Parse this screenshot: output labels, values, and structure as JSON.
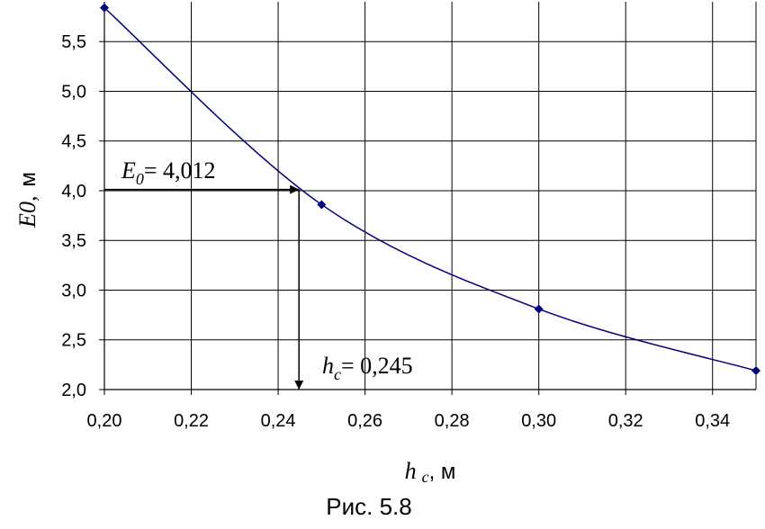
{
  "chart_data": {
    "type": "line",
    "x": [
      0.2,
      0.25,
      0.3,
      0.35
    ],
    "y": [
      5.84,
      3.86,
      2.81,
      2.19
    ],
    "xlim": [
      0.2,
      0.35
    ],
    "ylim": [
      2.0,
      5.9
    ],
    "xticks": [
      0.2,
      0.22,
      0.24,
      0.26,
      0.28,
      0.3,
      0.32,
      0.34
    ],
    "yticks": [
      2.0,
      2.5,
      3.0,
      3.5,
      4.0,
      4.5,
      5.0,
      5.5
    ],
    "xtick_labels": [
      "0,20",
      "0,22",
      "0,24",
      "0,26",
      "0,28",
      "0,30",
      "0,32",
      "0,34"
    ],
    "ytick_labels": [
      "2,0",
      "2,5",
      "3,0",
      "3,5",
      "4,0",
      "4,5",
      "5,0",
      "5,5"
    ],
    "grid": true,
    "line_color": "#000080",
    "marker_color": "#000080",
    "xlabel": {
      "var": "h",
      "sub": "c",
      "unit": ", м"
    },
    "ylabel": {
      "var": "E0,",
      "unit": "м"
    },
    "annotations": {
      "e0": {
        "var": "E",
        "sub": "0",
        "text": "= 4,012",
        "x": 0.245,
        "y": 4.012
      },
      "hc": {
        "var": "h",
        "sub": "c",
        "text": "= 0,245",
        "x": 0.245,
        "y": 4.012
      }
    }
  },
  "caption": "Рис. 5.8"
}
